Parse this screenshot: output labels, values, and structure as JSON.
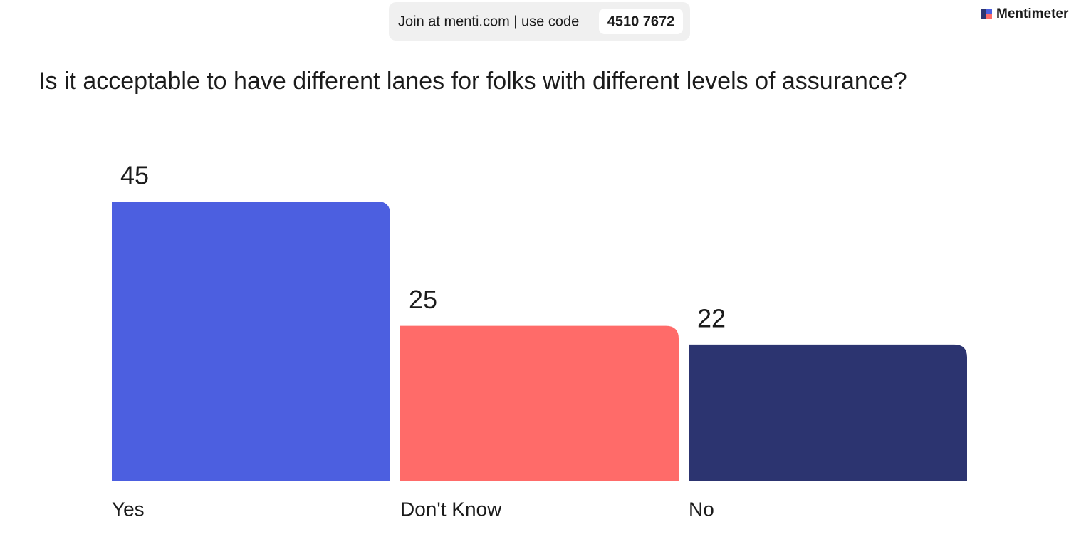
{
  "header": {
    "join_text": "Join at menti.com | use code",
    "code": "4510 7672",
    "brand": "Mentimeter"
  },
  "chart_data": {
    "type": "bar",
    "title": "Is it acceptable to have different lanes for folks with different levels of assurance?",
    "categories": [
      "Yes",
      "Don't Know",
      "No"
    ],
    "values": [
      45,
      25,
      22
    ],
    "colors": [
      "#4c5fe0",
      "#ff6b69",
      "#2c3470"
    ]
  }
}
